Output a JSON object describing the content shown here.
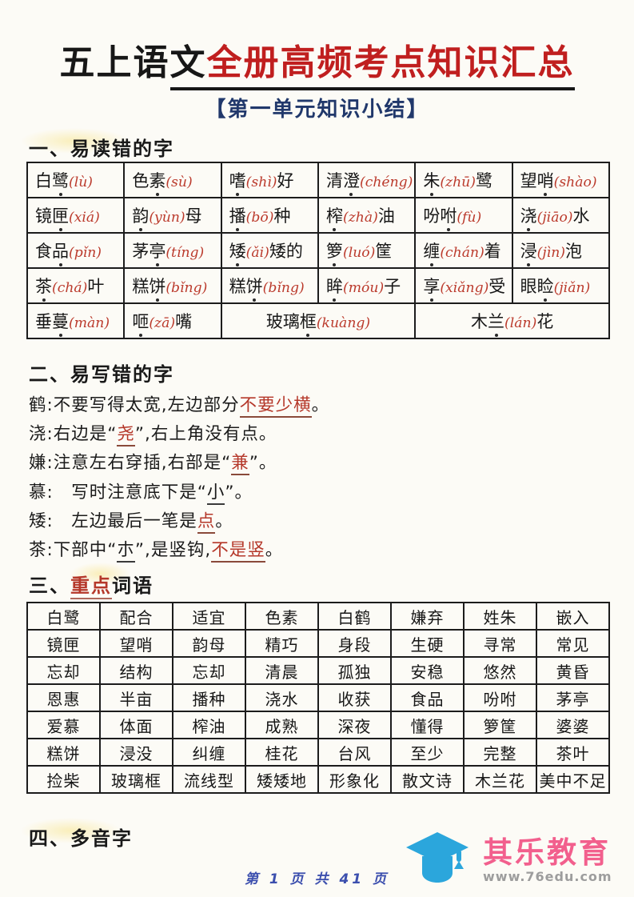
{
  "colors": {
    "title-red": "#c01f1f",
    "subtitle-navy": "#21386b",
    "accent-red": "#b5382a",
    "pinyin-red": "#bb3a2c",
    "footer-blue": "#3c4fae",
    "logo-blue": "#2ba6dc",
    "logo-pink": "#f25f8d",
    "url-gray": "#9d9d9d",
    "ink-black": "#1a1a1a",
    "table-border": "#1c1c1c"
  },
  "title": {
    "prefix": "五上语",
    "underline_black": "文",
    "red": "全册高频考点知识汇总"
  },
  "subtitle": "【第一单元知识小结】",
  "sections": {
    "s1": "一、易读错的字",
    "s2": "二、易写错的字",
    "s3_prefix": "三、",
    "s3_red": "重点",
    "s3_rest": "词语",
    "s4": "四、多音字"
  },
  "table1": {
    "rows": [
      [
        "白[鹭](lù)",
        "色[素](sù)",
        "[嗜](shì)好",
        "清[澄](chéng)",
        "[朱](zhū)鹭",
        "望[哨](shào)"
      ],
      [
        "镜[匣](xiá)",
        "[韵](yùn)母",
        "[播](bō)种",
        "[榨](zhà)油",
        "吩[咐](fù)",
        "[浇](jiāo)水"
      ],
      [
        "食[品](pǐn)",
        "茅[亭](tíng)",
        "[矮](ǎi)矮的",
        "[箩](luó)筐",
        "[缠](chán)着",
        "[浸](jìn)泡"
      ],
      [
        "[茶](chá)叶",
        "糕[饼](bǐng)",
        "糕[饼](bǐng)",
        "[眸](móu)子",
        "[享](xiǎng)受",
        "眼[睑](jiǎn)"
      ],
      [
        {
          "t": "垂[蔓](màn)"
        },
        {
          "t": "[咂](zā)嘴"
        },
        {
          "t": "玻璃[框](kuàng)",
          "span": 2
        },
        {
          "t": "木[兰](lán)花",
          "span": 2
        }
      ]
    ]
  },
  "notes": [
    [
      {
        "t": "鹤:不要写得太宽,左边部分"
      },
      {
        "t": "不要少横",
        "s": "ru"
      },
      {
        "t": "。"
      }
    ],
    [
      {
        "t": "浇:右边是“"
      },
      {
        "t": "尧",
        "s": "ru"
      },
      {
        "t": "”,右上角没有点。"
      }
    ],
    [
      {
        "t": "嫌:注意左右穿插,右部是“"
      },
      {
        "t": "兼",
        "s": "ru"
      },
      {
        "t": "”。"
      }
    ],
    [
      {
        "t": "慕:　写时注意底下是“"
      },
      {
        "t": "小",
        "s": "bu"
      },
      {
        "t": "”。"
      }
    ],
    [
      {
        "t": "矮:　左边最后一笔是"
      },
      {
        "t": "点",
        "s": "ru"
      },
      {
        "t": "。"
      }
    ],
    [
      {
        "t": "茶:下部中“"
      },
      {
        "t": "朩",
        "s": "bu"
      },
      {
        "t": "”,是竖钩,"
      },
      {
        "t": "不是竖",
        "s": "ru"
      },
      {
        "t": "。"
      }
    ]
  ],
  "table2": {
    "rows": [
      [
        "白鹭",
        "配合",
        "适宜",
        "色素",
        "白鹤",
        "嫌弃",
        "姓朱",
        "嵌入"
      ],
      [
        "镜匣",
        "望哨",
        "韵母",
        "精巧",
        "身段",
        "生硬",
        "寻常",
        "常见"
      ],
      [
        "忘却",
        "结构",
        "忘却",
        "清晨",
        "孤独",
        "安稳",
        "悠然",
        "黄昏"
      ],
      [
        "恩惠",
        "半亩",
        "播种",
        "浇水",
        "收获",
        "食品",
        "吩咐",
        "茅亭"
      ],
      [
        "爱慕",
        "体面",
        "榨油",
        "成熟",
        "深夜",
        "懂得",
        "箩筐",
        "婆婆"
      ],
      [
        "糕饼",
        "浸没",
        "纠缠",
        "桂花",
        "台风",
        "至少",
        "完整",
        "茶叶"
      ],
      [
        "捡柴",
        "玻璃框",
        "流线型",
        "矮矮地",
        "形象化",
        "散文诗",
        "木兰花",
        "美中不足"
      ]
    ]
  },
  "footer": {
    "page_indicator": "第 1 页 共 41 页"
  },
  "logo": {
    "brand": "其乐教育",
    "url": "www.76edu.com",
    "icon": "graduation-cap"
  }
}
